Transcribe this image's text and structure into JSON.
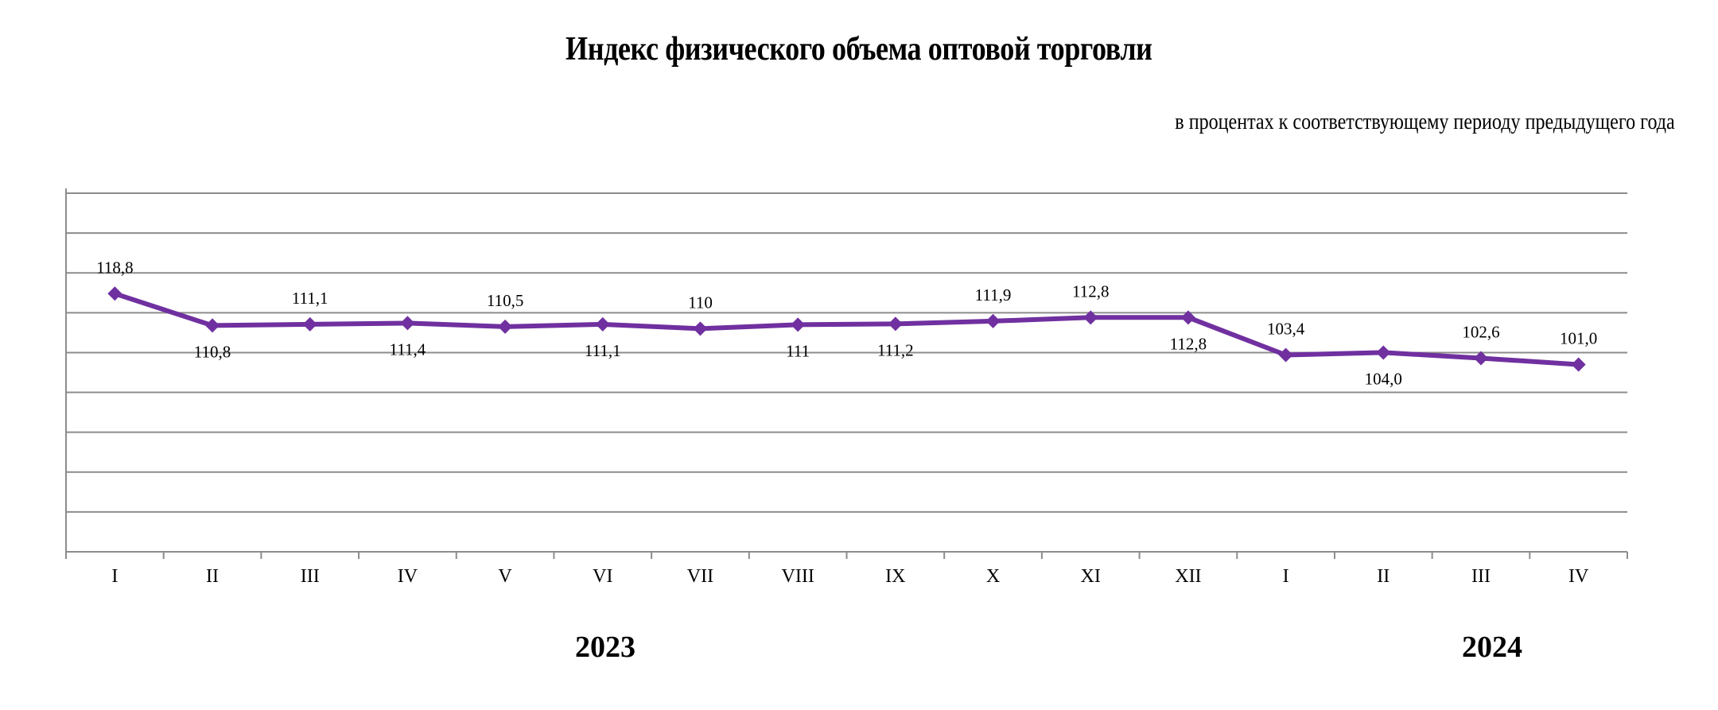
{
  "title": "Индекс физического объема оптовой торговли",
  "subtitle": "в процентах к соответствующему периоду предыдущего года",
  "colors": {
    "series": "#7030A0",
    "grid": "#8c8c8c",
    "text": "#000000",
    "background": "#ffffff"
  },
  "year_groups": [
    {
      "label": "2023",
      "span": [
        0,
        11
      ]
    },
    {
      "label": "2024",
      "span": [
        12,
        15
      ]
    }
  ],
  "chart_data": {
    "type": "line",
    "title": "Индекс физического объема оптовой торговли",
    "subtitle": "в процентах к соответствующему периоду предыдущего года",
    "xlabel": "",
    "ylabel": "",
    "categories": [
      "I",
      "II",
      "III",
      "IV",
      "V",
      "VI",
      "VII",
      "VIII",
      "IX",
      "X",
      "XI",
      "XII",
      "I",
      "II",
      "III",
      "IV"
    ],
    "category_groups": [
      {
        "label": "2023",
        "categories": [
          "I",
          "II",
          "III",
          "IV",
          "V",
          "VI",
          "VII",
          "VIII",
          "IX",
          "X",
          "XI",
          "XII"
        ]
      },
      {
        "label": "2024",
        "categories": [
          "I",
          "II",
          "III",
          "IV"
        ]
      }
    ],
    "series": [
      {
        "name": "Индекс физического объема оптовой торговли",
        "color": "#7030A0",
        "marker": "diamond",
        "values": [
          118.8,
          110.8,
          111.1,
          111.4,
          110.5,
          111.1,
          110.0,
          111.0,
          111.2,
          111.9,
          112.8,
          112.8,
          103.4,
          104.0,
          102.6,
          101.0
        ],
        "data_labels": [
          "118,8",
          "110,8",
          "111,1",
          "111,4",
          "110,5",
          "111,1",
          "110",
          "111",
          "111,2",
          "111,9",
          "112,8",
          "112,8",
          "103,4",
          "104,0",
          "102,6",
          "101,0"
        ],
        "label_positions": [
          "above",
          "below",
          "above",
          "below",
          "above",
          "below",
          "above",
          "below",
          "below",
          "above",
          "above",
          "below",
          "above",
          "below",
          "above",
          "above"
        ]
      }
    ],
    "ylim": [
      54,
      144
    ],
    "y_axis_visible": false,
    "grid": true,
    "gridline_count": 9,
    "legend": "none"
  }
}
